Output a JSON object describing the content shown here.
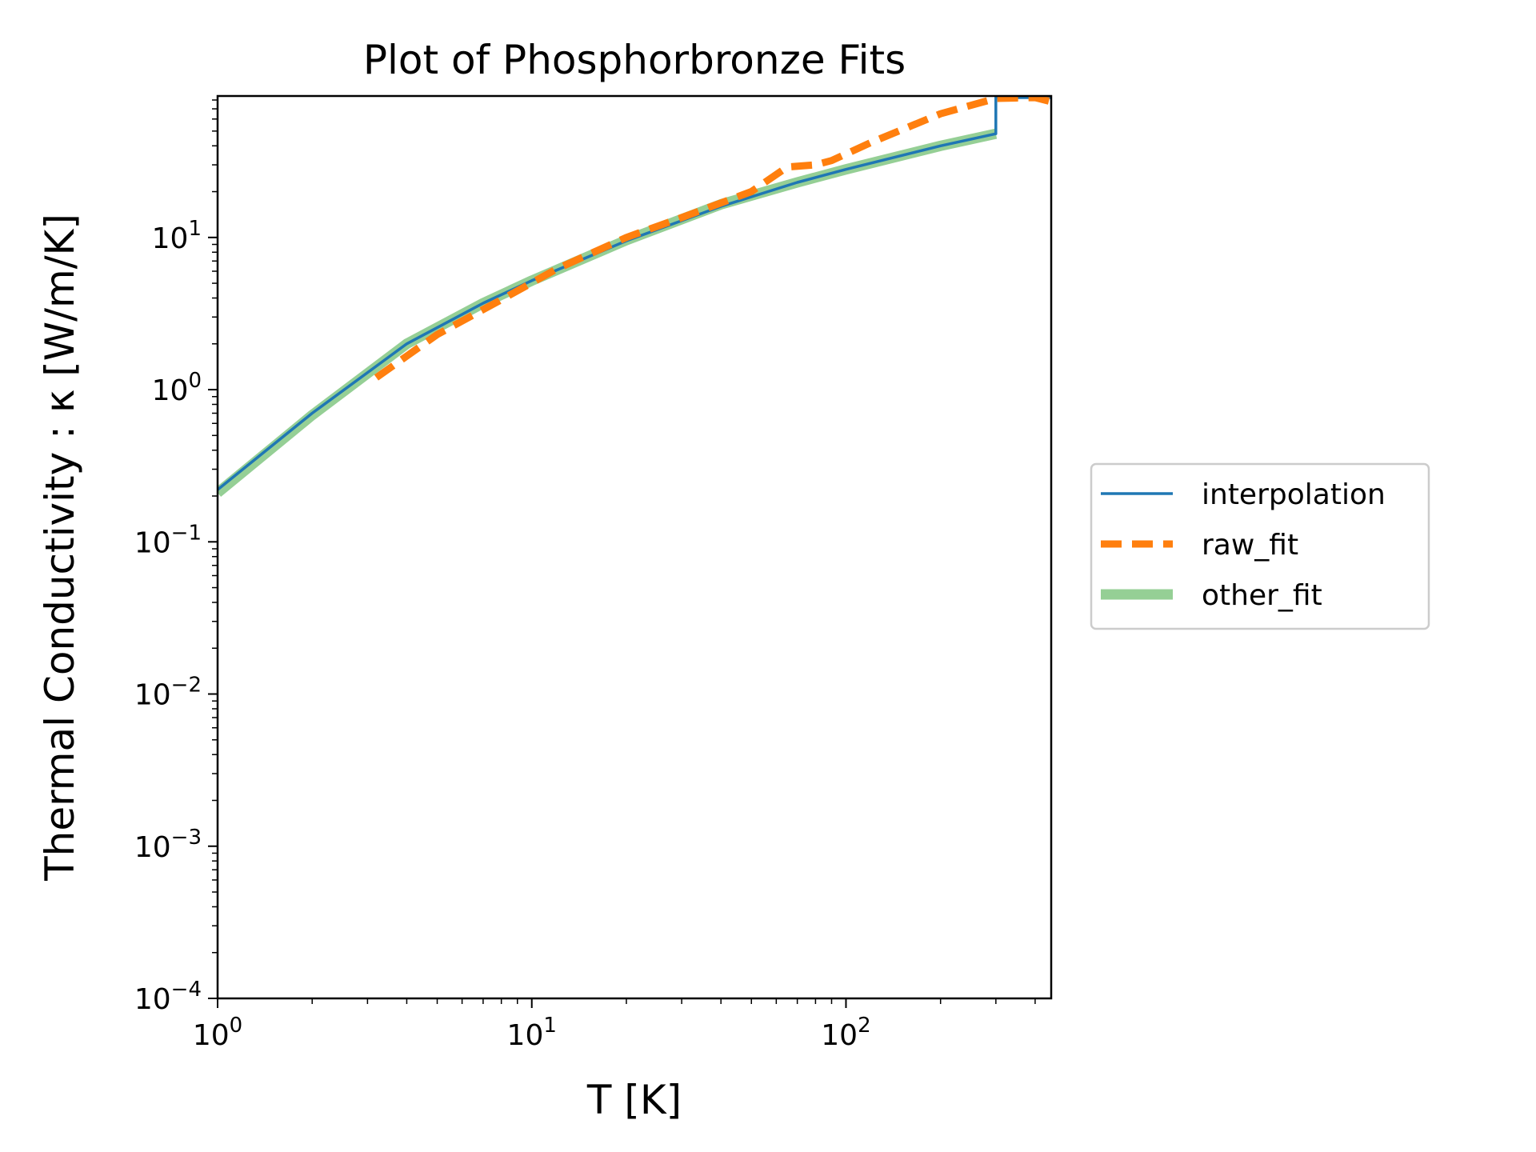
{
  "chart_data": {
    "type": "line",
    "title": "Plot of Phosphorbronze Fits",
    "xlabel": "T [K]",
    "ylabel": "Thermal Conductivity : κ [W/m/K]",
    "xscale": "log",
    "yscale": "log",
    "xlim": [
      1,
      450
    ],
    "ylim": [
      0.0001,
      85
    ],
    "grid": false,
    "legend_placement": "outside right, center",
    "x_ticks": [
      {
        "base": "10",
        "exp": "0",
        "value": 1
      },
      {
        "base": "10",
        "exp": "1",
        "value": 10
      },
      {
        "base": "10",
        "exp": "2",
        "value": 100
      }
    ],
    "y_ticks": [
      {
        "base": "10",
        "exp": "−4",
        "value": 0.0001
      },
      {
        "base": "10",
        "exp": "−3",
        "value": 0.001
      },
      {
        "base": "10",
        "exp": "−2",
        "value": 0.01
      },
      {
        "base": "10",
        "exp": "−1",
        "value": 0.1
      },
      {
        "base": "10",
        "exp": "0",
        "value": 1
      },
      {
        "base": "10",
        "exp": "1",
        "value": 10
      }
    ],
    "series": [
      {
        "name": "interpolation",
        "color": "#1f77b4",
        "style": "solid",
        "x": [
          1,
          2,
          4,
          7,
          10,
          20,
          40,
          70,
          100,
          200,
          300,
          300,
          320,
          450
        ],
        "y": [
          0.22,
          0.7,
          2.0,
          3.7,
          5.2,
          9.5,
          16,
          23,
          28,
          40,
          48,
          83,
          83,
          83
        ]
      },
      {
        "name": "raw_fit",
        "color": "#ff7f0e",
        "style": "dashed",
        "x": [
          3.2,
          5,
          8,
          12,
          20,
          30,
          50,
          65,
          80,
          90,
          120,
          200,
          300,
          400,
          450
        ],
        "y": [
          1.2,
          2.3,
          3.9,
          6.2,
          10,
          13.5,
          20,
          29,
          30,
          32,
          42,
          65,
          82,
          83,
          78
        ]
      },
      {
        "name": "other_fit",
        "color": "#2ca02c",
        "style": "thick-translucent",
        "x": [
          1,
          2,
          4,
          7,
          10,
          20,
          40,
          70,
          100,
          200,
          300
        ],
        "y": [
          0.21,
          0.68,
          2.0,
          3.7,
          5.2,
          9.6,
          16.5,
          23,
          28,
          40,
          48
        ]
      }
    ]
  }
}
